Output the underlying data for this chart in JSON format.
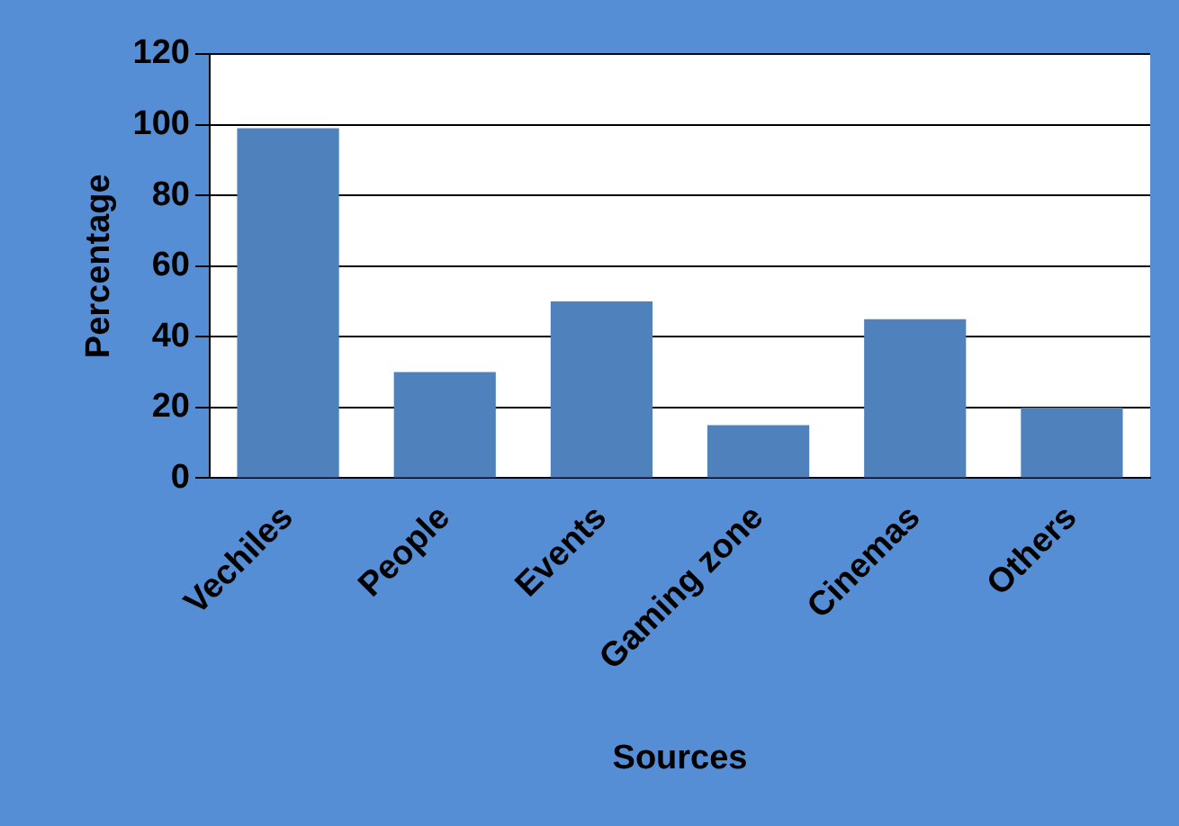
{
  "chart_data": {
    "type": "bar",
    "xlabel": "Sources",
    "ylabel": "Percentage",
    "categories": [
      "Vechiles",
      "People",
      "Events",
      "Gaming zone",
      "Cinemas",
      "Others"
    ],
    "values": [
      99,
      30,
      50,
      15,
      45,
      20
    ],
    "color": "#4f81bd",
    "ylim": [
      0,
      120
    ],
    "yticks": [
      0,
      20,
      40,
      60,
      80,
      100,
      120
    ],
    "grid": "y",
    "legend": false
  }
}
